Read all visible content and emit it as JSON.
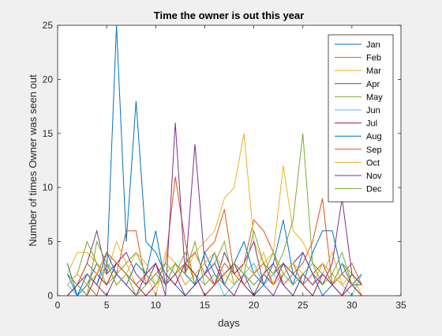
{
  "chart_data": {
    "type": "line",
    "title": "Time the owner is out this year",
    "xlabel": "days",
    "ylabel": "Number of times Owner was seen out",
    "xlim": [
      0,
      35
    ],
    "ylim": [
      0,
      25
    ],
    "xticks": [
      0,
      5,
      10,
      15,
      20,
      25,
      30,
      35
    ],
    "yticks": [
      0,
      5,
      10,
      15,
      20,
      25
    ],
    "grid": false,
    "legend_position": "top-right",
    "x": [
      1,
      2,
      3,
      4,
      5,
      6,
      7,
      8,
      9,
      10,
      11,
      12,
      13,
      14,
      15,
      16,
      17,
      18,
      19,
      20,
      21,
      22,
      23,
      24,
      25,
      26,
      27,
      28,
      29,
      30,
      31
    ],
    "series": [
      {
        "name": "Jan",
        "color": "#0072BD",
        "values": [
          2,
          0,
          1,
          3,
          2,
          25,
          5,
          18,
          5,
          4,
          2,
          1,
          0,
          1,
          2,
          4,
          1,
          3,
          2,
          0,
          1,
          2,
          3,
          1,
          4,
          2,
          0,
          1,
          3,
          1,
          2
        ]
      },
      {
        "name": "Feb",
        "color": "#D95319",
        "values": [
          1,
          2,
          1,
          0,
          3,
          2,
          6,
          6,
          1,
          2,
          3,
          11,
          5,
          1,
          4,
          5,
          8,
          2,
          3,
          7,
          6,
          4,
          1,
          2,
          3,
          5,
          9,
          1,
          2,
          3,
          1
        ]
      },
      {
        "name": "Mar",
        "color": "#EDB120",
        "values": [
          2,
          4,
          4,
          3,
          2,
          5,
          3,
          1,
          2,
          0,
          4,
          3,
          2,
          4,
          5,
          6,
          9,
          10,
          15,
          5,
          3,
          4,
          12,
          6,
          5,
          3,
          2,
          4,
          1,
          2,
          0
        ]
      },
      {
        "name": "Apr",
        "color": "#7E2F8E",
        "values": [
          0,
          1,
          3,
          6,
          2,
          3,
          4,
          2,
          1,
          3,
          0,
          16,
          2,
          14,
          3,
          1,
          4,
          2,
          3,
          5,
          1,
          0,
          2,
          3,
          4,
          2,
          1,
          3,
          9,
          2,
          1
        ]
      },
      {
        "name": "May",
        "color": "#77AC30",
        "values": [
          1,
          2,
          5,
          3,
          1,
          2,
          3,
          4,
          2,
          1,
          3,
          2,
          4,
          1,
          2,
          3,
          5,
          1,
          2,
          6,
          3,
          2,
          4,
          7,
          15,
          3,
          2,
          1,
          3,
          2,
          1
        ]
      },
      {
        "name": "Jun",
        "color": "#4DBEEE",
        "values": [
          1,
          0,
          2,
          1,
          3,
          2,
          1,
          0,
          2,
          1,
          2,
          3,
          1,
          2,
          1,
          2,
          0,
          1,
          2,
          3,
          1,
          2,
          1,
          0,
          2,
          1,
          3,
          2,
          1,
          0,
          2
        ]
      },
      {
        "name": "Jul",
        "color": "#A2142F",
        "values": [
          0,
          1,
          0,
          2,
          1,
          3,
          2,
          1,
          0,
          1,
          2,
          1,
          3,
          2,
          0,
          1,
          2,
          3,
          1,
          0,
          2,
          1,
          3,
          2,
          1,
          0,
          2,
          1,
          0,
          1,
          0
        ]
      },
      {
        "name": "Aug",
        "color": "#0072BD",
        "values": [
          3,
          0,
          2,
          1,
          4,
          2,
          1,
          3,
          2,
          6,
          1,
          3,
          2,
          1,
          4,
          2,
          1,
          3,
          5,
          2,
          1,
          3,
          7,
          2,
          1,
          4,
          6,
          6,
          2,
          1,
          1
        ]
      },
      {
        "name": "Sep",
        "color": "#D95319",
        "values": [
          2,
          1,
          3,
          2,
          4,
          3,
          2,
          1,
          2,
          3,
          1,
          2,
          3,
          4,
          2,
          1,
          3,
          2,
          1,
          2,
          3,
          1,
          2,
          3,
          1,
          2,
          3,
          1,
          2,
          1,
          1
        ]
      },
      {
        "name": "Oct",
        "color": "#EDB120",
        "values": [
          1,
          2,
          1,
          2,
          3,
          1,
          2,
          4,
          3,
          1,
          2,
          3,
          1,
          2,
          3,
          4,
          2,
          1,
          3,
          2,
          4,
          1,
          2,
          3,
          2,
          1,
          3,
          2,
          1,
          2,
          1
        ]
      },
      {
        "name": "Nov",
        "color": "#7E2F8E",
        "values": [
          0,
          1,
          2,
          1,
          0,
          2,
          1,
          0,
          2,
          3,
          1,
          2,
          0,
          1,
          2,
          3,
          1,
          0,
          2,
          1,
          2,
          3,
          1,
          0,
          2,
          1,
          2,
          1,
          0,
          2,
          1
        ]
      },
      {
        "name": "Dec",
        "color": "#77AC30",
        "values": [
          2,
          1,
          0,
          5,
          3,
          1,
          2,
          0,
          1,
          2,
          1,
          3,
          2,
          5,
          1,
          2,
          1,
          3,
          2,
          1,
          2,
          4,
          2,
          1,
          2,
          3,
          1,
          2,
          4,
          1,
          1
        ]
      }
    ]
  }
}
